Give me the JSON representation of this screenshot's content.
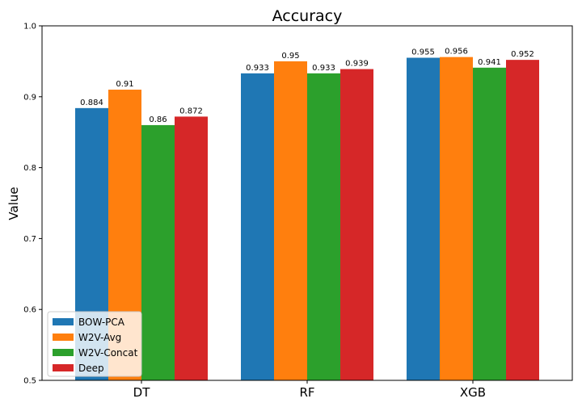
{
  "chart_data": {
    "type": "bar",
    "title": "Accuracy",
    "xlabel": "",
    "ylabel": "Value",
    "categories": [
      "DT",
      "RF",
      "XGB"
    ],
    "ylim": [
      0.5,
      1.0
    ],
    "yticks": [
      "0.5",
      "0.6",
      "0.7",
      "0.8",
      "0.9",
      "1.0"
    ],
    "grid": false,
    "legend_position": "lower-left",
    "series": [
      {
        "name": "BOW-PCA",
        "color": "#1f77b4",
        "values": [
          0.884,
          0.933,
          0.955
        ],
        "labels": [
          "0.884",
          "0.933",
          "0.955"
        ]
      },
      {
        "name": "W2V-Avg",
        "color": "#ff7f0e",
        "values": [
          0.91,
          0.95,
          0.956
        ],
        "labels": [
          "0.91",
          "0.95",
          "0.956"
        ]
      },
      {
        "name": "W2V-Concat",
        "color": "#2ca02c",
        "values": [
          0.86,
          0.933,
          0.941
        ],
        "labels": [
          "0.86",
          "0.933",
          "0.941"
        ]
      },
      {
        "name": "Deep",
        "color": "#d62728",
        "values": [
          0.872,
          0.939,
          0.952
        ],
        "labels": [
          "0.872",
          "0.939",
          "0.952"
        ]
      }
    ]
  }
}
